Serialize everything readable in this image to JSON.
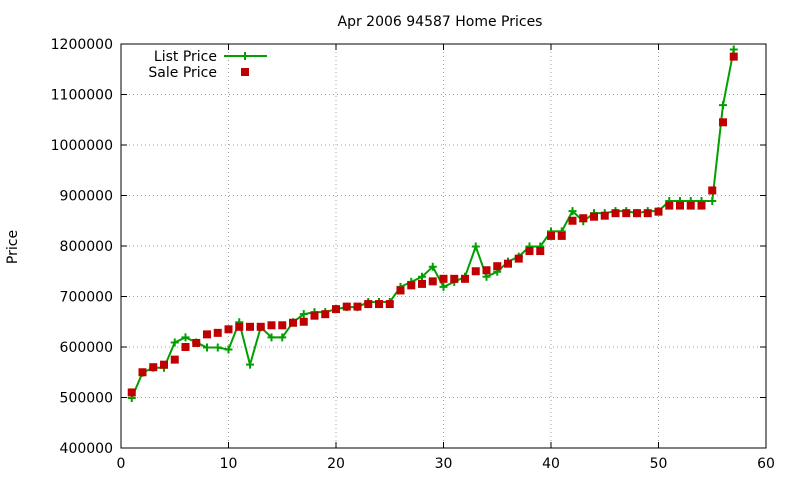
{
  "chart_data": {
    "type": "line",
    "title": "Apr 2006 94587 Home Prices",
    "xlabel": "",
    "ylabel": "Price",
    "xlim": [
      0,
      60
    ],
    "ylim": [
      400000,
      1200000
    ],
    "xticks": [
      0,
      10,
      20,
      30,
      40,
      50,
      60
    ],
    "yticks": [
      400000,
      500000,
      600000,
      700000,
      800000,
      900000,
      1000000,
      1100000,
      1200000
    ],
    "grid": true,
    "legend_position": "top-left",
    "series": [
      {
        "name": "List Price",
        "color": "#00a000",
        "style": "lines+crosses",
        "x": [
          1,
          2,
          3,
          4,
          5,
          6,
          7,
          8,
          9,
          10,
          11,
          12,
          13,
          14,
          15,
          16,
          17,
          18,
          19,
          20,
          21,
          22,
          23,
          24,
          25,
          26,
          27,
          28,
          29,
          30,
          31,
          32,
          33,
          34,
          35,
          36,
          37,
          38,
          39,
          40,
          41,
          42,
          43,
          44,
          45,
          46,
          47,
          48,
          49,
          50,
          51,
          52,
          53,
          54,
          55,
          56,
          57
        ],
        "y": [
          499000,
          549000,
          559000,
          559000,
          609000,
          619000,
          609000,
          599000,
          599000,
          595000,
          649000,
          565000,
          639000,
          619000,
          619000,
          649000,
          665000,
          669000,
          669000,
          675000,
          679000,
          679000,
          689000,
          689000,
          689000,
          719000,
          729000,
          739000,
          759000,
          719000,
          729000,
          739000,
          799000,
          739000,
          749000,
          769000,
          779000,
          799000,
          799000,
          829000,
          829000,
          869000,
          849000,
          865000,
          865000,
          869000,
          869000,
          865000,
          869000,
          869000,
          889000,
          889000,
          889000,
          889000,
          889000,
          1079000,
          1189000
        ]
      },
      {
        "name": "Sale Price",
        "color": "#c00000",
        "style": "squares",
        "x": [
          1,
          2,
          3,
          4,
          5,
          6,
          7,
          8,
          9,
          10,
          11,
          12,
          13,
          14,
          15,
          16,
          17,
          18,
          19,
          20,
          21,
          22,
          23,
          24,
          25,
          26,
          27,
          28,
          29,
          30,
          31,
          32,
          33,
          34,
          35,
          36,
          37,
          38,
          39,
          40,
          41,
          42,
          43,
          44,
          45,
          46,
          47,
          48,
          49,
          50,
          51,
          52,
          53,
          54,
          55,
          56,
          57
        ],
        "y": [
          510000,
          550000,
          560000,
          565000,
          575000,
          600000,
          608000,
          625000,
          628000,
          635000,
          640000,
          640000,
          640000,
          643000,
          643000,
          648000,
          650000,
          662000,
          665000,
          675000,
          680000,
          680000,
          685000,
          685000,
          685000,
          712000,
          722000,
          725000,
          730000,
          735000,
          735000,
          735000,
          750000,
          752000,
          760000,
          765000,
          775000,
          790000,
          790000,
          820000,
          820000,
          850000,
          855000,
          858000,
          860000,
          865000,
          865000,
          865000,
          865000,
          868000,
          880000,
          880000,
          880000,
          880000,
          910000,
          1045000,
          1175000
        ]
      }
    ]
  }
}
